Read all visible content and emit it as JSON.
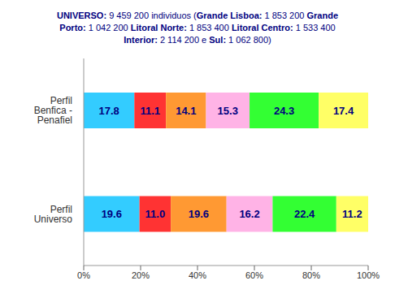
{
  "chart_data": {
    "type": "bar",
    "title": "UNIVERSO: 9 459 200 individuos (Grande Lisboa: 1 853 200 Grande Porto: 1 042 200 Litoral Norte: 1 853 400 Litoral Centro: 1 533 400 Interior: 2 114 200 e Sul: 1 062 800)",
    "orientation": "horizontal",
    "stacked": true,
    "data_labels": true,
    "grid": false,
    "categories": [
      "Perfil Benfica - Penafiel",
      "Perfil Universo"
    ],
    "series": [
      {
        "color": "#33CCFF",
        "values": [
          17.8,
          19.6
        ],
        "value_labels": [
          "17.8",
          "19.6"
        ]
      },
      {
        "color": "#FF3333",
        "values": [
          11.1,
          11.0
        ],
        "value_labels": [
          "11.1",
          "11.0"
        ]
      },
      {
        "color": "#FF9933",
        "values": [
          14.1,
          19.6
        ],
        "value_labels": [
          "14.1",
          "19.6"
        ]
      },
      {
        "color": "#FFB3E6",
        "values": [
          15.3,
          16.2
        ],
        "value_labels": [
          "15.3",
          "16.2"
        ]
      },
      {
        "color": "#33FF33",
        "values": [
          24.3,
          22.4
        ],
        "value_labels": [
          "24.3",
          "22.4"
        ]
      },
      {
        "color": "#FFFF66",
        "values": [
          17.4,
          11.2
        ],
        "value_labels": [
          "17.4",
          "11.2"
        ]
      }
    ],
    "xlim": [
      0,
      100
    ],
    "xticks": [
      {
        "value": 0,
        "label": "0%"
      },
      {
        "value": 20,
        "label": "20%"
      },
      {
        "value": 40,
        "label": "40%"
      },
      {
        "value": 60,
        "label": "60%"
      },
      {
        "value": 80,
        "label": "80%"
      },
      {
        "value": 100,
        "label": "100%"
      }
    ]
  }
}
